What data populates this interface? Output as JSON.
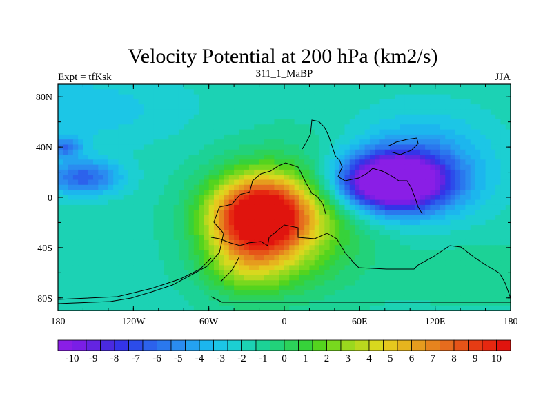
{
  "title": "Velocity Potential at 200 hPa (km2/s)",
  "left_label": "Expt = tfKsk",
  "center_label": "311_1_MaBP",
  "right_label": "JJA",
  "x_ticks": [
    "180",
    "120W",
    "60W",
    "0",
    "60E",
    "120E",
    "180"
  ],
  "y_ticks": [
    "80N",
    "40N",
    "0",
    "40S",
    "80S"
  ],
  "colorbar": {
    "labels": [
      "-10",
      "-9",
      "-8",
      "-7",
      "-6",
      "-5",
      "-4",
      "-3",
      "-2",
      "-1",
      "0",
      "1",
      "2",
      "3",
      "4",
      "5",
      "6",
      "7",
      "8",
      "9",
      "10"
    ],
    "colors": [
      "#8a1ee6",
      "#7a1ee6",
      "#6424e2",
      "#4a2ae0",
      "#3434e8",
      "#2c4cea",
      "#2c62ec",
      "#2a78ee",
      "#2a8cf0",
      "#24a2f0",
      "#1cb6ee",
      "#1cc6e6",
      "#1ccfd2",
      "#1cd2b4",
      "#1cd296",
      "#22d27a",
      "#2cd25a",
      "#36d23a",
      "#54d41e",
      "#78d81e",
      "#9ad81e",
      "#bad81e",
      "#d8d81e",
      "#e6c81e",
      "#e6b41e",
      "#e69c1e",
      "#e6841e",
      "#e66c1e",
      "#e65418",
      "#e63c14",
      "#e62810",
      "#e0140e"
    ]
  },
  "chart_data": {
    "type": "heatmap",
    "variable": "velocity potential at 200 hPa",
    "units": "km2/s",
    "x_range": [
      -180,
      180
    ],
    "y_range": [
      -90,
      90
    ],
    "color_range": [
      -10,
      10
    ],
    "contour_interval": 0.625,
    "features": [
      {
        "lon": -20,
        "lat": -15,
        "value": 10
      },
      {
        "lon": 85,
        "lat": 12,
        "value": -10
      },
      {
        "lon": -160,
        "lat": 16,
        "value": -6
      },
      {
        "lon": -175,
        "lat": 40,
        "value": -6
      }
    ]
  }
}
